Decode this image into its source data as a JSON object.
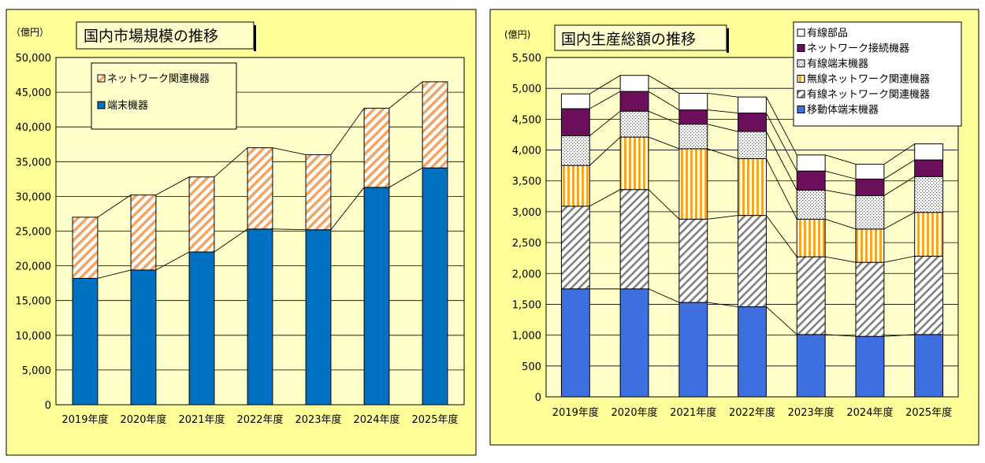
{
  "chart_data": [
    {
      "type": "bar",
      "stacked": true,
      "title": "国内市場規模の推移",
      "unit_label": "（億円）",
      "categories": [
        "2019年度",
        "2020年度",
        "2021年度",
        "2022年度",
        "2023年度",
        "2024年度",
        "2025年度"
      ],
      "series": [
        {
          "name": "端末機器",
          "values": [
            18200,
            19400,
            22000,
            25300,
            25200,
            31300,
            34100
          ],
          "color": "#0070c0",
          "pattern": "solid"
        },
        {
          "name": "ネットワーク関連機器",
          "values": [
            8800,
            10800,
            10800,
            11700,
            10800,
            11400,
            12400
          ],
          "color": "#f4a460",
          "pattern": "diagonal"
        }
      ],
      "ylim": [
        0,
        50000
      ],
      "yticks": [
        "0",
        "5,000",
        "10,000",
        "15,000",
        "20,000",
        "25,000",
        "30,000",
        "35,000",
        "40,000",
        "45,000",
        "50,000"
      ],
      "grid": true,
      "legend_position": "top-left",
      "connector_lines": true
    },
    {
      "type": "bar",
      "stacked": true,
      "title": "国内生産総額の推移",
      "unit_label": "(億円)",
      "categories": [
        "2019年度",
        "2020年度",
        "2021年度",
        "2022年度",
        "2023年度",
        "2024年度",
        "2025年度"
      ],
      "series": [
        {
          "name": "移動体端末機器",
          "values": [
            1750,
            1750,
            1530,
            1460,
            1010,
            980,
            1010
          ],
          "color": "#3f6fdf",
          "pattern": "solid"
        },
        {
          "name": "有線ネットワーク関連機器",
          "values": [
            1340,
            1610,
            1350,
            1480,
            1260,
            1200,
            1270
          ],
          "color": "#808080",
          "pattern": "diagonal"
        },
        {
          "name": "無線ネットワーク関連機器",
          "values": [
            660,
            850,
            1140,
            920,
            610,
            540,
            710
          ],
          "color": "#f5a623",
          "pattern": "vertical"
        },
        {
          "name": "有線端末機器",
          "values": [
            480,
            420,
            400,
            440,
            470,
            540,
            580
          ],
          "color": "#666666",
          "pattern": "dots"
        },
        {
          "name": "ネットワーク接続機器",
          "values": [
            440,
            320,
            230,
            300,
            310,
            270,
            270
          ],
          "color": "#6b0f5a",
          "pattern": "solid"
        },
        {
          "name": "有線部品",
          "values": [
            240,
            260,
            270,
            260,
            260,
            240,
            260
          ],
          "color": "#ffffff",
          "pattern": "solid"
        }
      ],
      "ylim": [
        0,
        5500
      ],
      "yticks": [
        "0",
        "500",
        "1,000",
        "1,500",
        "2,000",
        "2,500",
        "3,000",
        "3,500",
        "4,000",
        "4,500",
        "5,000",
        "5,500"
      ],
      "grid": true,
      "legend_position": "top-right",
      "connector_lines": true
    }
  ]
}
